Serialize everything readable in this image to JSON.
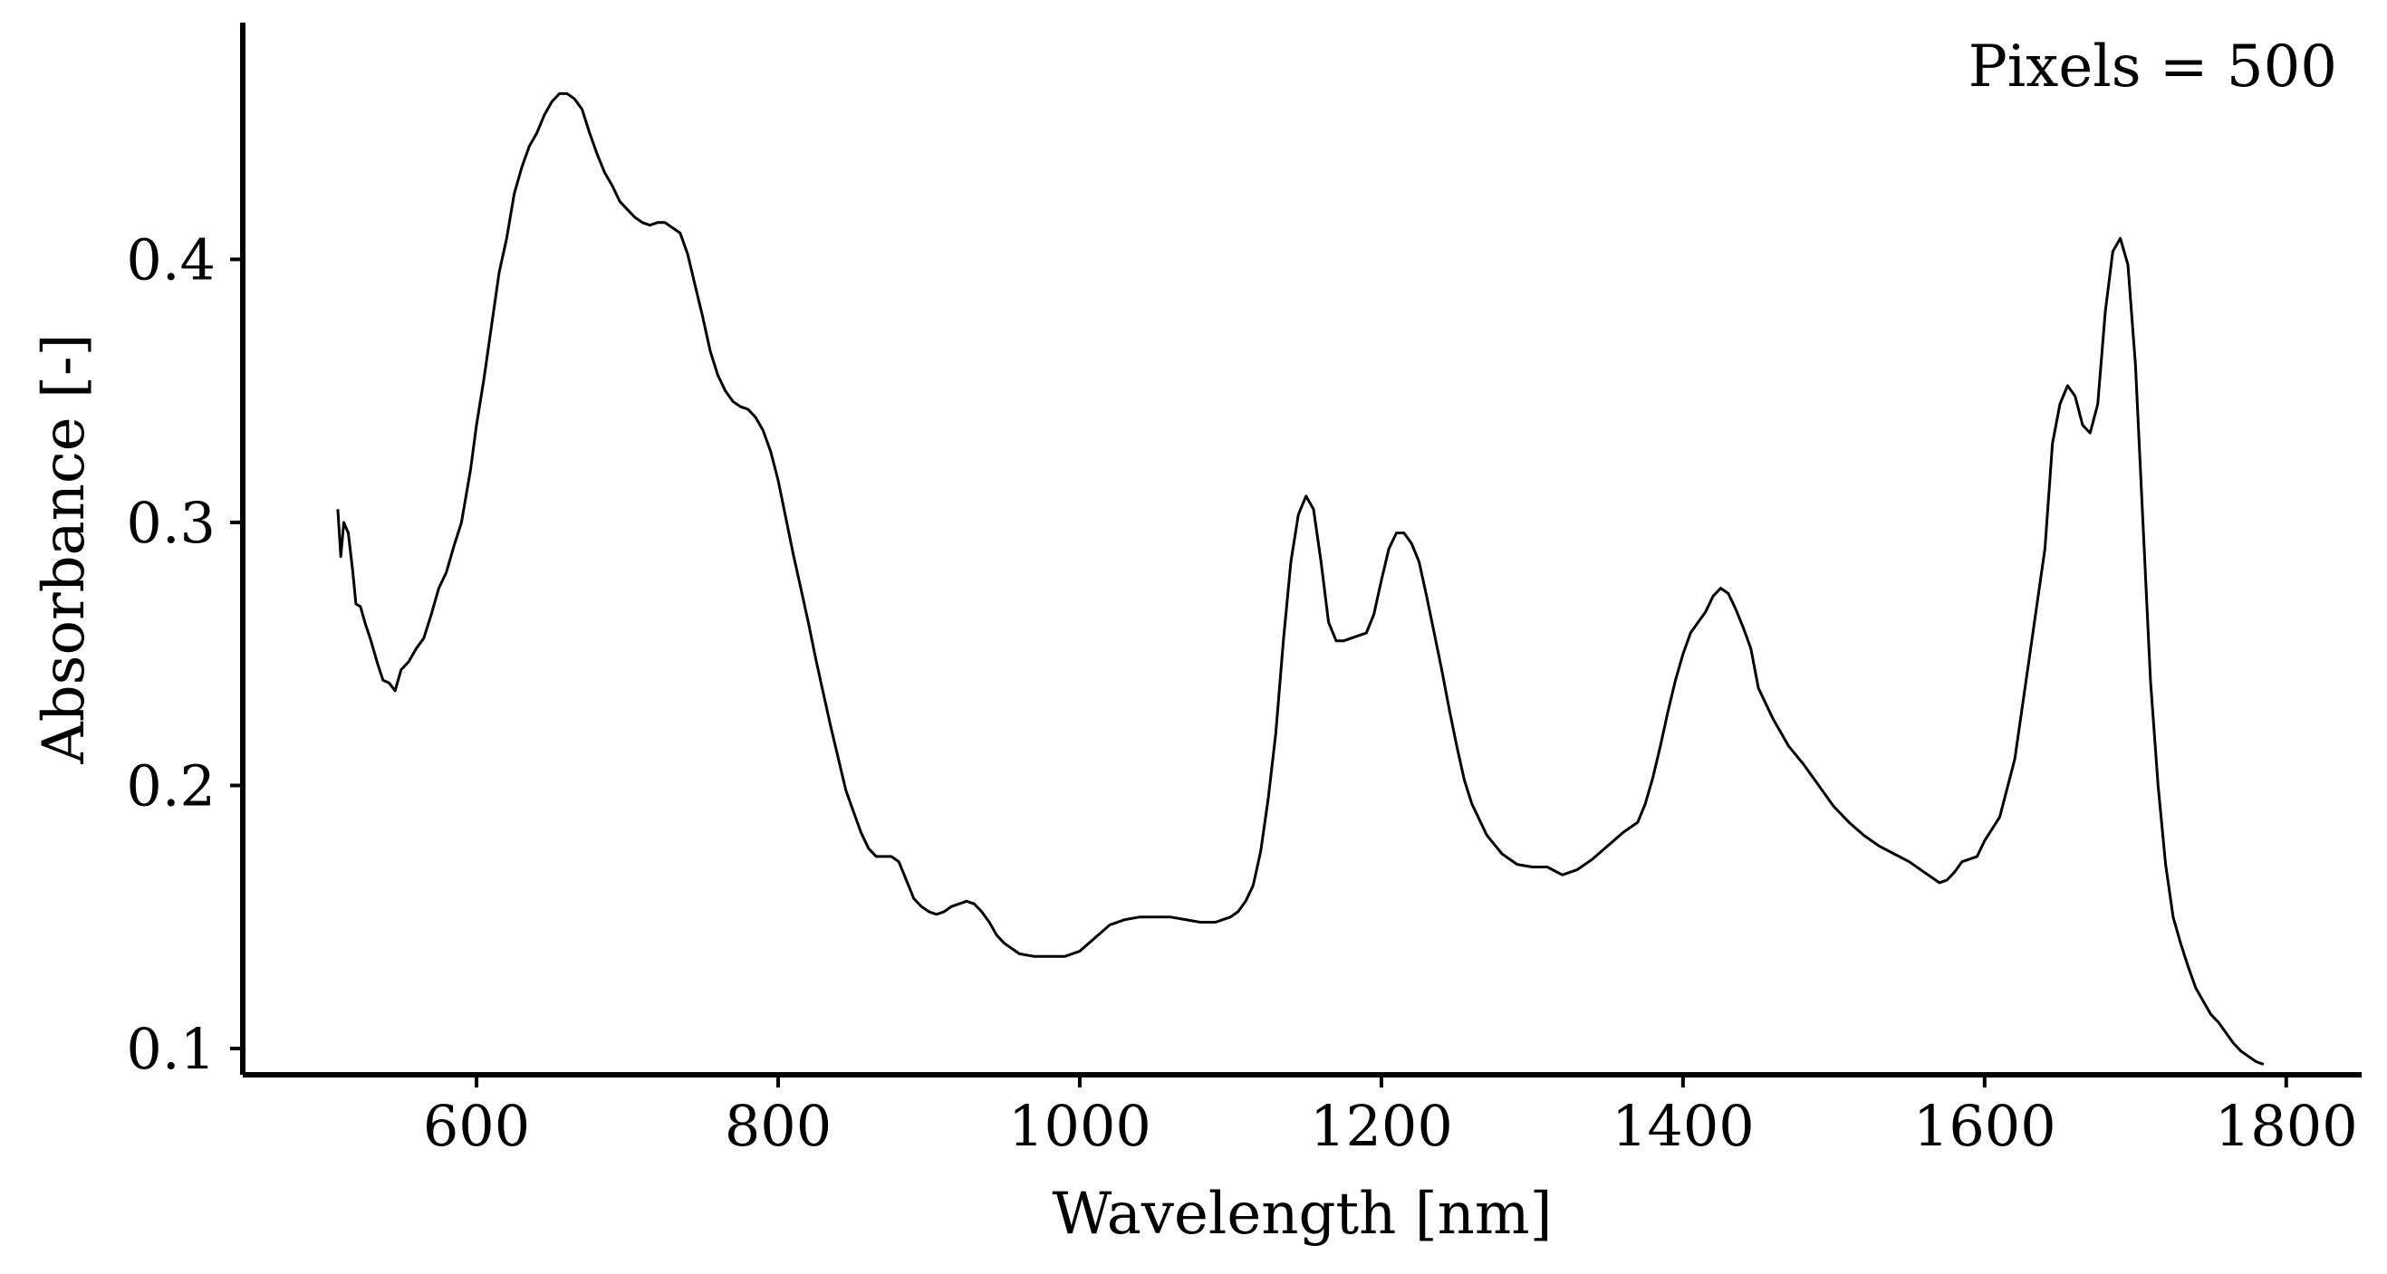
{
  "chart_data": {
    "type": "line",
    "title": "",
    "xlabel": "Wavelength [nm]",
    "ylabel": "Absorbance [-]",
    "annotation": "Pixels = 500",
    "xlim": [
      445,
      1850
    ],
    "ylim": [
      0.09,
      0.49
    ],
    "xticks": [
      600,
      800,
      1000,
      1200,
      1400,
      1600,
      1800
    ],
    "xtick_labels": [
      "600",
      "800",
      "1000",
      "1200",
      "1400",
      "1600",
      "1800"
    ],
    "yticks": [
      0.1,
      0.2,
      0.3,
      0.4
    ],
    "ytick_labels": [
      "0.1",
      "0.2",
      "0.3",
      "0.4"
    ],
    "grid": false,
    "line_color": "#000000",
    "series": [
      {
        "x": [
          508,
          510,
          512,
          515,
          518,
          520,
          523,
          526,
          530,
          534,
          538,
          542,
          546,
          550,
          555,
          560,
          565,
          570,
          575,
          580,
          585,
          590,
          596,
          600,
          605,
          610,
          615,
          620,
          625,
          630,
          635,
          640,
          645,
          650,
          655,
          660,
          665,
          670,
          675,
          680,
          685,
          690,
          695,
          700,
          705,
          710,
          715,
          720,
          725,
          730,
          735,
          740,
          745,
          750,
          755,
          760,
          765,
          770,
          775,
          780,
          785,
          790,
          795,
          800,
          805,
          810,
          815,
          820,
          825,
          830,
          835,
          840,
          845,
          850,
          855,
          860,
          865,
          870,
          875,
          880,
          885,
          890,
          895,
          900,
          905,
          910,
          915,
          920,
          925,
          930,
          935,
          940,
          945,
          950,
          960,
          970,
          980,
          990,
          1000,
          1010,
          1020,
          1030,
          1040,
          1050,
          1060,
          1070,
          1080,
          1090,
          1100,
          1105,
          1110,
          1115,
          1120,
          1125,
          1130,
          1135,
          1140,
          1145,
          1150,
          1155,
          1160,
          1165,
          1170,
          1175,
          1180,
          1185,
          1190,
          1195,
          1200,
          1205,
          1210,
          1215,
          1220,
          1225,
          1230,
          1235,
          1240,
          1245,
          1250,
          1255,
          1260,
          1270,
          1280,
          1290,
          1300,
          1310,
          1320,
          1330,
          1340,
          1350,
          1360,
          1370,
          1375,
          1380,
          1385,
          1390,
          1395,
          1400,
          1405,
          1410,
          1415,
          1420,
          1425,
          1430,
          1435,
          1440,
          1445,
          1450,
          1460,
          1470,
          1480,
          1490,
          1500,
          1510,
          1520,
          1530,
          1540,
          1550,
          1560,
          1570,
          1575,
          1580,
          1585,
          1590,
          1595,
          1600,
          1610,
          1620,
          1630,
          1640,
          1645,
          1650,
          1655,
          1660,
          1665,
          1670,
          1675,
          1680,
          1685,
          1690,
          1695,
          1700,
          1705,
          1710,
          1715,
          1720,
          1725,
          1730,
          1735,
          1740,
          1745,
          1750,
          1755,
          1760,
          1765,
          1770,
          1775,
          1780,
          1785
        ],
        "y": [
          0.305,
          0.287,
          0.3,
          0.296,
          0.281,
          0.269,
          0.268,
          0.262,
          0.255,
          0.247,
          0.24,
          0.239,
          0.236,
          0.244,
          0.247,
          0.252,
          0.256,
          0.265,
          0.275,
          0.281,
          0.291,
          0.3,
          0.32,
          0.337,
          0.355,
          0.375,
          0.395,
          0.408,
          0.425,
          0.435,
          0.443,
          0.448,
          0.455,
          0.46,
          0.463,
          0.463,
          0.461,
          0.457,
          0.448,
          0.44,
          0.433,
          0.428,
          0.422,
          0.419,
          0.416,
          0.414,
          0.413,
          0.414,
          0.414,
          0.412,
          0.41,
          0.402,
          0.39,
          0.378,
          0.365,
          0.356,
          0.35,
          0.346,
          0.344,
          0.343,
          0.34,
          0.335,
          0.327,
          0.316,
          0.302,
          0.288,
          0.275,
          0.262,
          0.248,
          0.235,
          0.222,
          0.21,
          0.198,
          0.19,
          0.182,
          0.176,
          0.173,
          0.173,
          0.173,
          0.171,
          0.164,
          0.157,
          0.154,
          0.152,
          0.151,
          0.152,
          0.154,
          0.155,
          0.156,
          0.155,
          0.152,
          0.148,
          0.143,
          0.14,
          0.136,
          0.135,
          0.135,
          0.135,
          0.137,
          0.142,
          0.147,
          0.149,
          0.15,
          0.15,
          0.15,
          0.149,
          0.148,
          0.148,
          0.15,
          0.152,
          0.156,
          0.162,
          0.175,
          0.195,
          0.22,
          0.255,
          0.285,
          0.303,
          0.31,
          0.305,
          0.285,
          0.262,
          0.255,
          0.255,
          0.256,
          0.257,
          0.258,
          0.265,
          0.278,
          0.29,
          0.296,
          0.296,
          0.292,
          0.285,
          0.272,
          0.258,
          0.244,
          0.229,
          0.215,
          0.202,
          0.193,
          0.181,
          0.174,
          0.17,
          0.169,
          0.169,
          0.166,
          0.168,
          0.172,
          0.177,
          0.182,
          0.186,
          0.193,
          0.203,
          0.215,
          0.228,
          0.24,
          0.25,
          0.258,
          0.262,
          0.266,
          0.272,
          0.275,
          0.273,
          0.267,
          0.26,
          0.252,
          0.237,
          0.225,
          0.215,
          0.208,
          0.2,
          0.192,
          0.186,
          0.181,
          0.177,
          0.174,
          0.171,
          0.167,
          0.163,
          0.164,
          0.167,
          0.171,
          0.172,
          0.173,
          0.179,
          0.188,
          0.21,
          0.25,
          0.29,
          0.33,
          0.345,
          0.352,
          0.348,
          0.337,
          0.334,
          0.345,
          0.38,
          0.403,
          0.408,
          0.398,
          0.36,
          0.3,
          0.24,
          0.2,
          0.17,
          0.15,
          0.14,
          0.131,
          0.123,
          0.118,
          0.113,
          0.11,
          0.106,
          0.102,
          0.099,
          0.097,
          0.095,
          0.094
        ]
      }
    ]
  }
}
